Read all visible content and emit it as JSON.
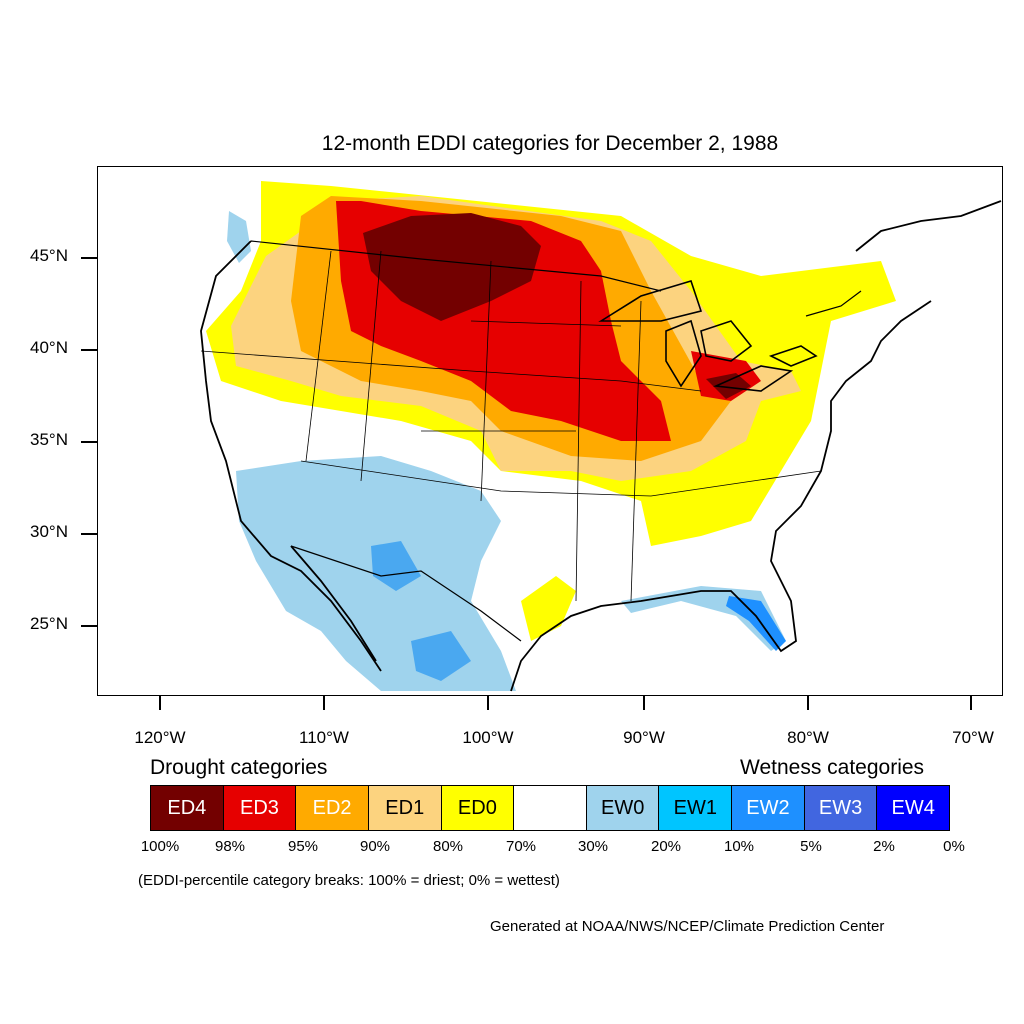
{
  "title": "12-month EDDI categories for December 2, 1988",
  "lat_labels": [
    "45°N",
    "40°N",
    "35°N",
    "30°N",
    "25°N"
  ],
  "lon_labels": [
    "120°W",
    "110°W",
    "100°W",
    "90°W",
    "80°W",
    "70°W"
  ],
  "legend": {
    "drought_heading": "Drought categories",
    "wetness_heading": "Wetness categories",
    "categories": [
      {
        "label": "ED4",
        "color": "#730000"
      },
      {
        "label": "ED3",
        "color": "#e60000"
      },
      {
        "label": "ED2",
        "color": "#ffaa00"
      },
      {
        "label": "ED1",
        "color": "#fcd37f"
      },
      {
        "label": "ED0",
        "color": "#ffff00"
      },
      {
        "label": "",
        "color": "#ffffff"
      },
      {
        "label": "EW0",
        "color": "#9fd3ed"
      },
      {
        "label": "EW1",
        "color": "#00c5ff"
      },
      {
        "label": "EW2",
        "color": "#1e90ff"
      },
      {
        "label": "EW3",
        "color": "#4166e0"
      },
      {
        "label": "EW4",
        "color": "#0000ff"
      }
    ],
    "percent_breaks": [
      "100%",
      "98%",
      "95%",
      "90%",
      "80%",
      "70%",
      "30%",
      "20%",
      "10%",
      "5%",
      "2%",
      "0%"
    ]
  },
  "note": "(EDDI-percentile category breaks: 100% = driest; 0% = wettest)",
  "credit": "Generated at NOAA/NWS/NCEP/Climate Prediction Center"
}
